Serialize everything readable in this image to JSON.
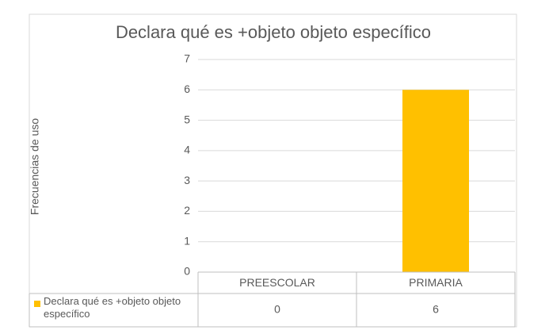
{
  "chart_data": {
    "type": "bar",
    "title": "Declara qué es +objeto objeto específico",
    "y_label": "Frecuencias de uso",
    "categories": [
      "PREESCOLAR",
      "PRIMARIA"
    ],
    "series": [
      {
        "name": "Declara qué es +objeto objeto específico",
        "color": "#ffc000",
        "values": [
          0,
          6
        ]
      }
    ],
    "ylim": [
      0,
      7
    ],
    "yticks": [
      0,
      1,
      2,
      3,
      4,
      5,
      6,
      7
    ],
    "grid": true,
    "data_table": true
  }
}
